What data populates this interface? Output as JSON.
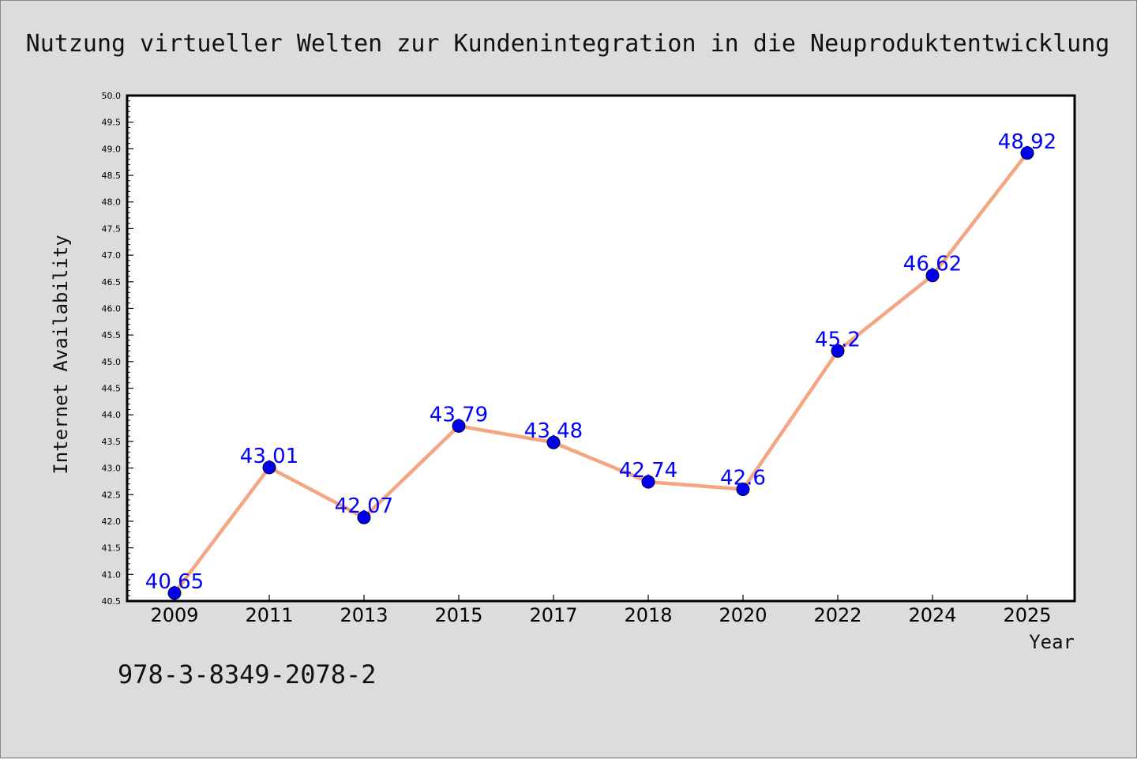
{
  "chart_data": {
    "type": "line",
    "title": "Nutzung virtueller Welten zur Kundenintegration in die Neuproduktentwicklung",
    "xlabel": "Year",
    "ylabel": "Internet Availability",
    "categories": [
      "2009",
      "2011",
      "2013",
      "2015",
      "2017",
      "2018",
      "2020",
      "2022",
      "2024",
      "2025"
    ],
    "series": [
      {
        "values": [
          40.65,
          43.01,
          42.07,
          43.79,
          43.48,
          42.74,
          42.6,
          45.2,
          46.62,
          48.92
        ],
        "data_labels": [
          "40.65",
          "43.01",
          "42.07",
          "43.79",
          "43.48",
          "42.74",
          "42.6",
          "45.2",
          "46.62",
          "48.92"
        ]
      }
    ],
    "ylim": [
      40.5,
      50.0
    ],
    "yticks": [
      "40.5",
      "41.0",
      "41.5",
      "42.0",
      "42.5",
      "43.0",
      "43.5",
      "44.0",
      "44.5",
      "45.0",
      "45.5",
      "46.0",
      "46.5",
      "47.0",
      "47.5",
      "48.0",
      "48.5",
      "49.0",
      "49.5",
      "50.0"
    ],
    "grid": false,
    "legend": "none",
    "colors": {
      "line": "#f4a582",
      "marker": "#0000ee",
      "label": "#0000ff",
      "background": "#dcdcdc",
      "plot_background": "#ffffff"
    }
  },
  "footer": {
    "isbn": "978-3-8349-2078-2"
  }
}
